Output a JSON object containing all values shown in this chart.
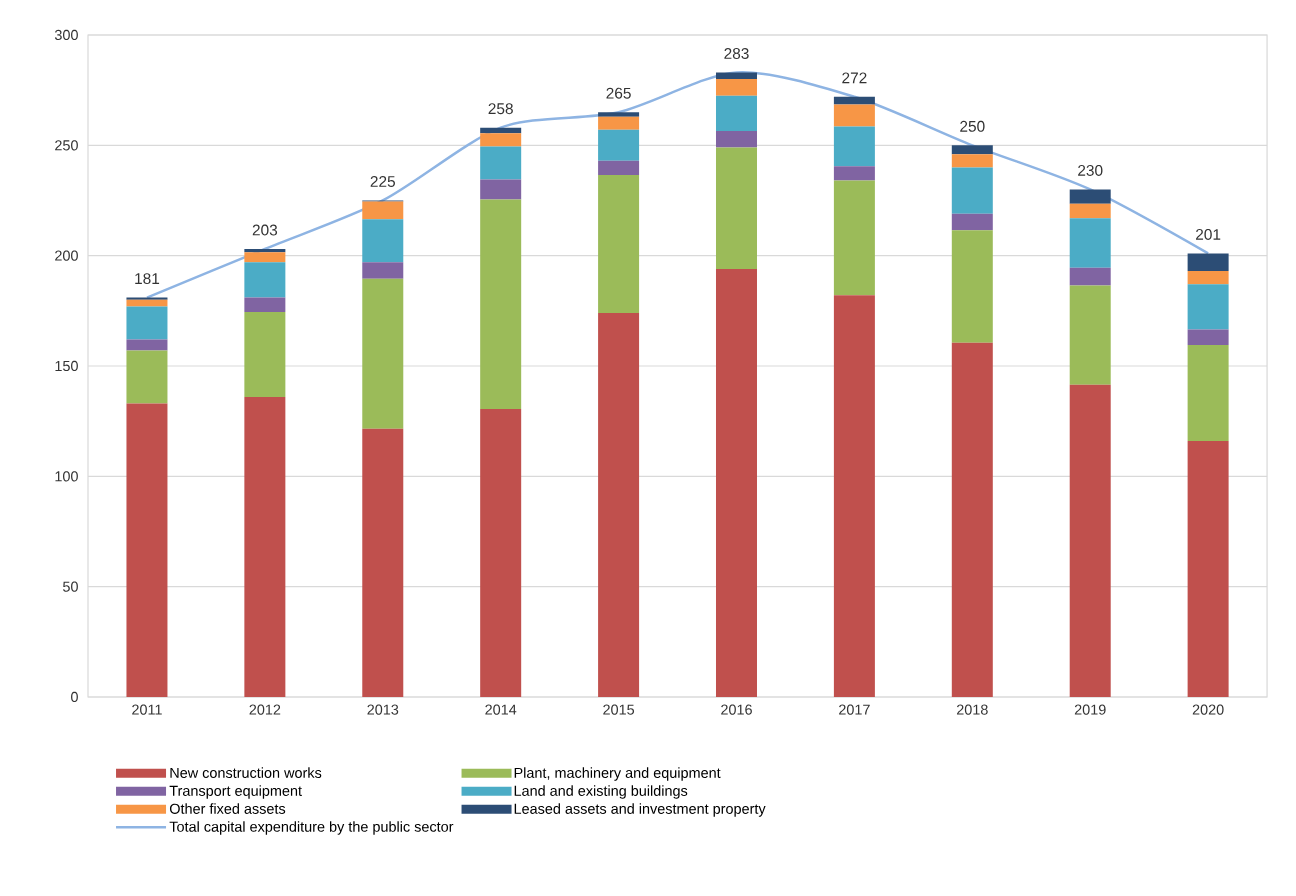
{
  "chart_data": {
    "type": "bar",
    "stacked": true,
    "categories": [
      "2011",
      "2012",
      "2013",
      "2014",
      "2015",
      "2016",
      "2017",
      "2018",
      "2019",
      "2020"
    ],
    "series": [
      {
        "name": "New construction works",
        "color": "#c0504d",
        "values": [
          133,
          136,
          121.5,
          130.5,
          174,
          194,
          182,
          160.5,
          141.5,
          116
        ]
      },
      {
        "name": "Plant, machinery and equipment",
        "color": "#9bbb59",
        "values": [
          24,
          38.5,
          68,
          95,
          62.5,
          55,
          52,
          51,
          45,
          43.5
        ]
      },
      {
        "name": "Transport equipment",
        "color": "#8064a2",
        "values": [
          5,
          6.5,
          7.5,
          9,
          6.5,
          7.5,
          6.5,
          7.5,
          8,
          7
        ]
      },
      {
        "name": "Land and existing buildings",
        "color": "#4bacc6",
        "values": [
          15,
          16,
          19.5,
          15,
          14,
          16,
          18,
          21,
          22.5,
          20.5
        ]
      },
      {
        "name": "Other fixed assets",
        "color": "#f79646",
        "values": [
          3,
          4.5,
          8,
          6,
          6,
          7.5,
          10,
          6,
          6.5,
          6
        ]
      },
      {
        "name": "Leased assets and investment property",
        "color": "#2c4d75",
        "values": [
          1,
          1.5,
          0.5,
          2.5,
          2,
          3,
          3.5,
          4,
          6.5,
          8
        ]
      },
      {
        "name": "Total capital expenditure by the public sector",
        "type": "line",
        "color": "#8eb4e3",
        "values": [
          181,
          203,
          225,
          258,
          265,
          283,
          272,
          250,
          230,
          201
        ],
        "value_labels": [
          "181",
          "203",
          "225",
          "258",
          "265",
          "283",
          "272",
          "250",
          "230",
          "201"
        ]
      }
    ],
    "ylim": [
      0,
      300
    ],
    "yticks": [
      0,
      50,
      100,
      150,
      200,
      250,
      300
    ],
    "grid": "y",
    "legend": "bottom"
  }
}
